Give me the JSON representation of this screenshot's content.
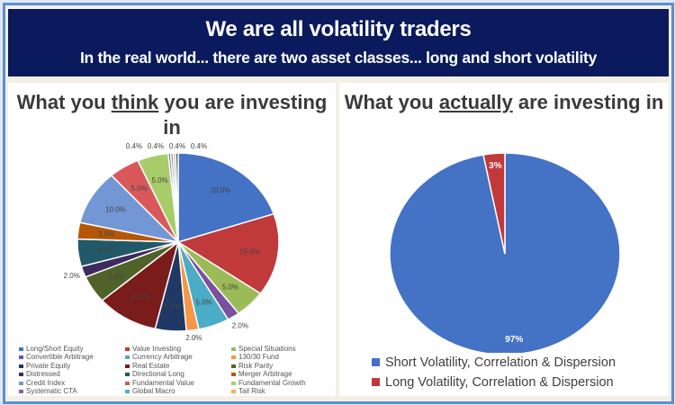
{
  "header": {
    "title": "We are all volatility traders",
    "subtitle": "In the real world... there are two asset classes... long and short volatility"
  },
  "chart_data": [
    {
      "type": "pie",
      "title_parts": [
        "What you ",
        "think",
        " you are investing in"
      ],
      "slices": [
        {
          "name": "Long/Short Equity",
          "value": 20.0,
          "label": "20.0%",
          "color": "#4472c4"
        },
        {
          "name": "Value Investing",
          "value": 15.0,
          "label": "15.0%",
          "color": "#c0393b"
        },
        {
          "name": "Special Situations",
          "value": 5.0,
          "label": "5.0%",
          "color": "#9bbb59"
        },
        {
          "name": "Convertible Arbitrage",
          "value": 2.0,
          "label": "2.0%",
          "color": "#7b4fa0"
        },
        {
          "name": "Currency Arbitrage",
          "value": 5.0,
          "label": "5.0%",
          "color": "#4bacc6"
        },
        {
          "name": "130/30 Fund",
          "value": 2.0,
          "label": "2.0%",
          "color": "#f79646"
        },
        {
          "name": "Private Equity",
          "value": 5.0,
          "label": "5.0%",
          "color": "#1f3864"
        },
        {
          "name": "Real Estate",
          "value": 10.0,
          "label": "10.0%",
          "color": "#7a1c1c"
        },
        {
          "name": "Risk Parity",
          "value": 5.0,
          "label": "5.0%",
          "color": "#4f6228"
        },
        {
          "name": "Distressed",
          "value": 2.0,
          "label": "2.0%",
          "color": "#3f2a5e"
        },
        {
          "name": "Directional Long",
          "value": 5.0,
          "label": "5.0%",
          "color": "#215968"
        },
        {
          "name": "Merger Arbitrage",
          "value": 3.0,
          "label": "3.0%",
          "color": "#b65708"
        },
        {
          "name": "Credit Index",
          "value": 10.0,
          "label": "10.0%",
          "color": "#7396d4"
        },
        {
          "name": "Fundamental Value",
          "value": 5.0,
          "label": "5.0%",
          "color": "#d9595b"
        },
        {
          "name": "Fundamental Growth",
          "value": 5.0,
          "label": "5.0%",
          "color": "#a9cc6a"
        },
        {
          "name": "Systematic CTA",
          "value": 0.4,
          "label": "0.4%",
          "color": "#8064a2"
        },
        {
          "name": "Global Macro",
          "value": 0.4,
          "label": "0.4%",
          "color": "#4bacc6"
        },
        {
          "name": "Tail Risk",
          "value": 0.4,
          "label": "0.4%",
          "color": "#f5a86a"
        },
        {
          "name": "",
          "value": 0.4,
          "label": "0.4%",
          "color": "#2c4d8a"
        }
      ],
      "legend_position": "bottom"
    },
    {
      "type": "pie",
      "title_parts": [
        "What you ",
        "actually",
        " are investing in"
      ],
      "slices": [
        {
          "name": "Short Volatility, Correlation & Dispersion",
          "value": 97,
          "label": "97%",
          "color": "#4472c4"
        },
        {
          "name": "Long Volatility, Correlation & Dispersion",
          "value": 3,
          "label": "3%",
          "color": "#c0393b"
        }
      ],
      "legend_position": "bottom"
    }
  ]
}
